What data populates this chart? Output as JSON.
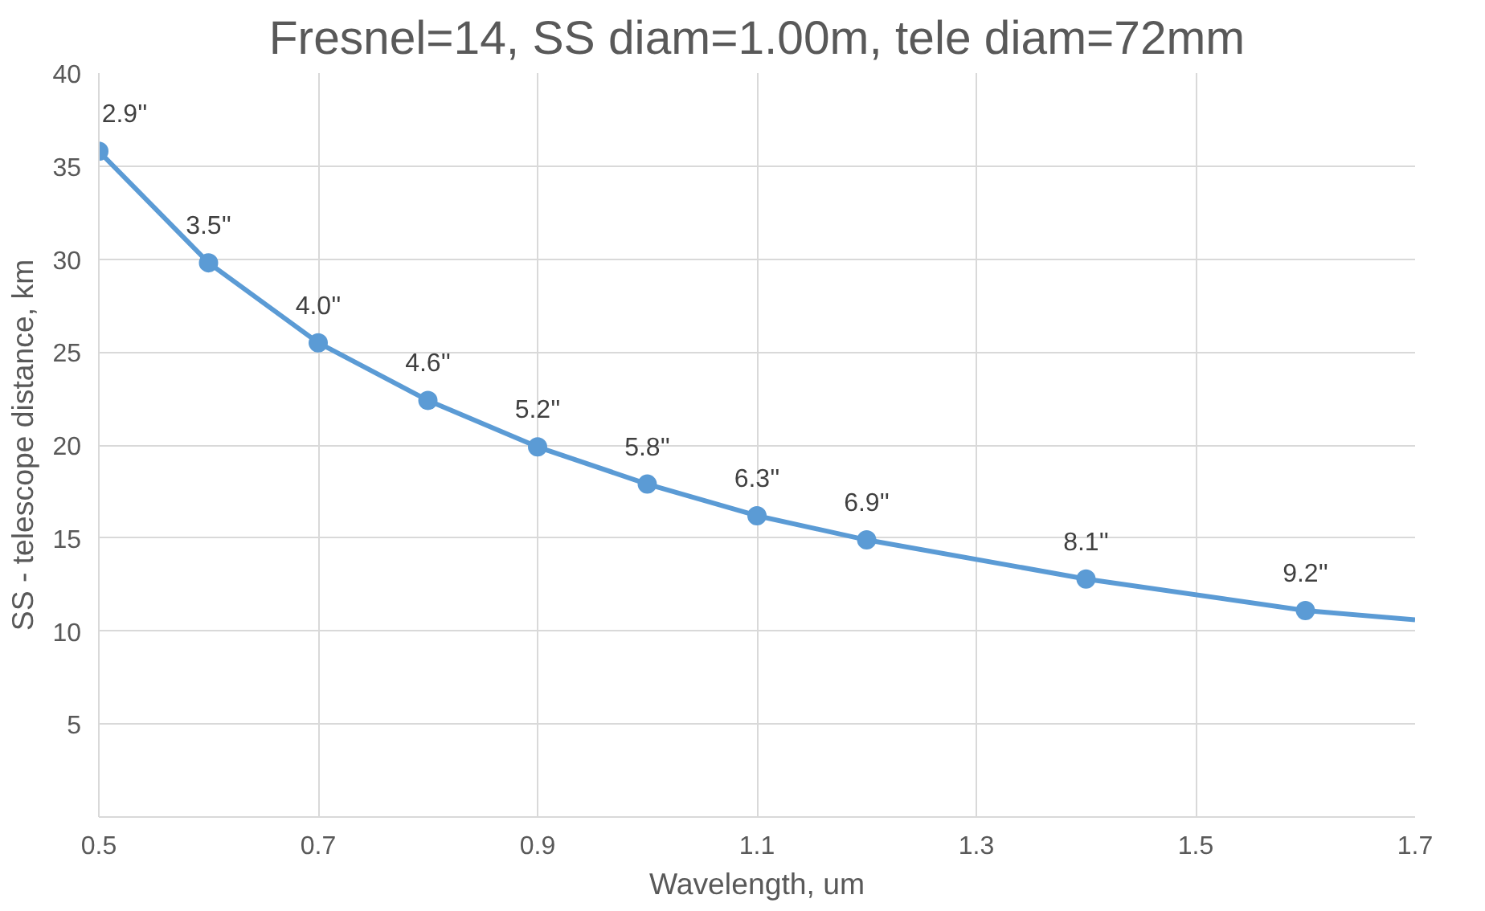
{
  "chart_data": {
    "type": "line",
    "title": "Fresnel=14, SS diam=1.00m, tele diam=72mm",
    "xlabel": "Wavelength, um",
    "ylabel": "SS - telescope distance, km",
    "xlim": [
      0.5,
      1.7
    ],
    "xticks": [
      {
        "value": 0.5,
        "label": "0.5"
      },
      {
        "value": 0.7,
        "label": "0.7"
      },
      {
        "value": 0.9,
        "label": "0.9"
      },
      {
        "value": 1.1,
        "label": "1.1"
      },
      {
        "value": 1.3,
        "label": "1.3"
      },
      {
        "value": 1.5,
        "label": "1.5"
      },
      {
        "value": 1.7,
        "label": "1.7"
      }
    ],
    "ylim": [
      0,
      40
    ],
    "yticks": [
      {
        "value": 0,
        "label": null
      },
      5,
      10,
      15,
      20,
      25,
      30,
      35,
      40
    ],
    "grid": true,
    "series": [
      {
        "color": "#5b9bd5",
        "marker": "none",
        "x": [
          0.5,
          0.6,
          0.7,
          0.8,
          0.9,
          1.0,
          1.1,
          1.2,
          1.4,
          1.6,
          1.7
        ],
        "values": [
          35.8,
          29.8,
          25.5,
          22.4,
          19.9,
          17.9,
          16.2,
          14.9,
          12.8,
          11.1,
          10.6
        ]
      },
      {
        "type": "scatter",
        "color": "#5b9bd5",
        "marker": "circle",
        "x": [
          0.5,
          0.6,
          0.7,
          0.8,
          0.9,
          1.0,
          1.1,
          1.2,
          1.4,
          1.6
        ],
        "values": [
          35.8,
          29.8,
          25.5,
          22.4,
          19.9,
          17.9,
          16.2,
          14.9,
          12.8,
          11.1
        ]
      }
    ],
    "annotations": [
      {
        "text": "2.9''",
        "x": 0.5,
        "y": 35.8
      },
      {
        "text": "3.5''",
        "x": 0.6,
        "y": 29.8
      },
      {
        "text": "4.0''",
        "x": 0.7,
        "y": 25.5
      },
      {
        "text": "4.6''",
        "x": 0.8,
        "y": 22.4
      },
      {
        "text": "5.2''",
        "x": 0.9,
        "y": 19.9
      },
      {
        "text": "5.8''",
        "x": 1.0,
        "y": 17.9
      },
      {
        "text": "6.3''",
        "x": 1.1,
        "y": 16.2
      },
      {
        "text": "6.9''",
        "x": 1.2,
        "y": 14.9
      },
      {
        "text": "8.1''",
        "x": 1.4,
        "y": 12.8
      },
      {
        "text": "9.2''",
        "x": 1.6,
        "y": 11.1
      }
    ]
  }
}
